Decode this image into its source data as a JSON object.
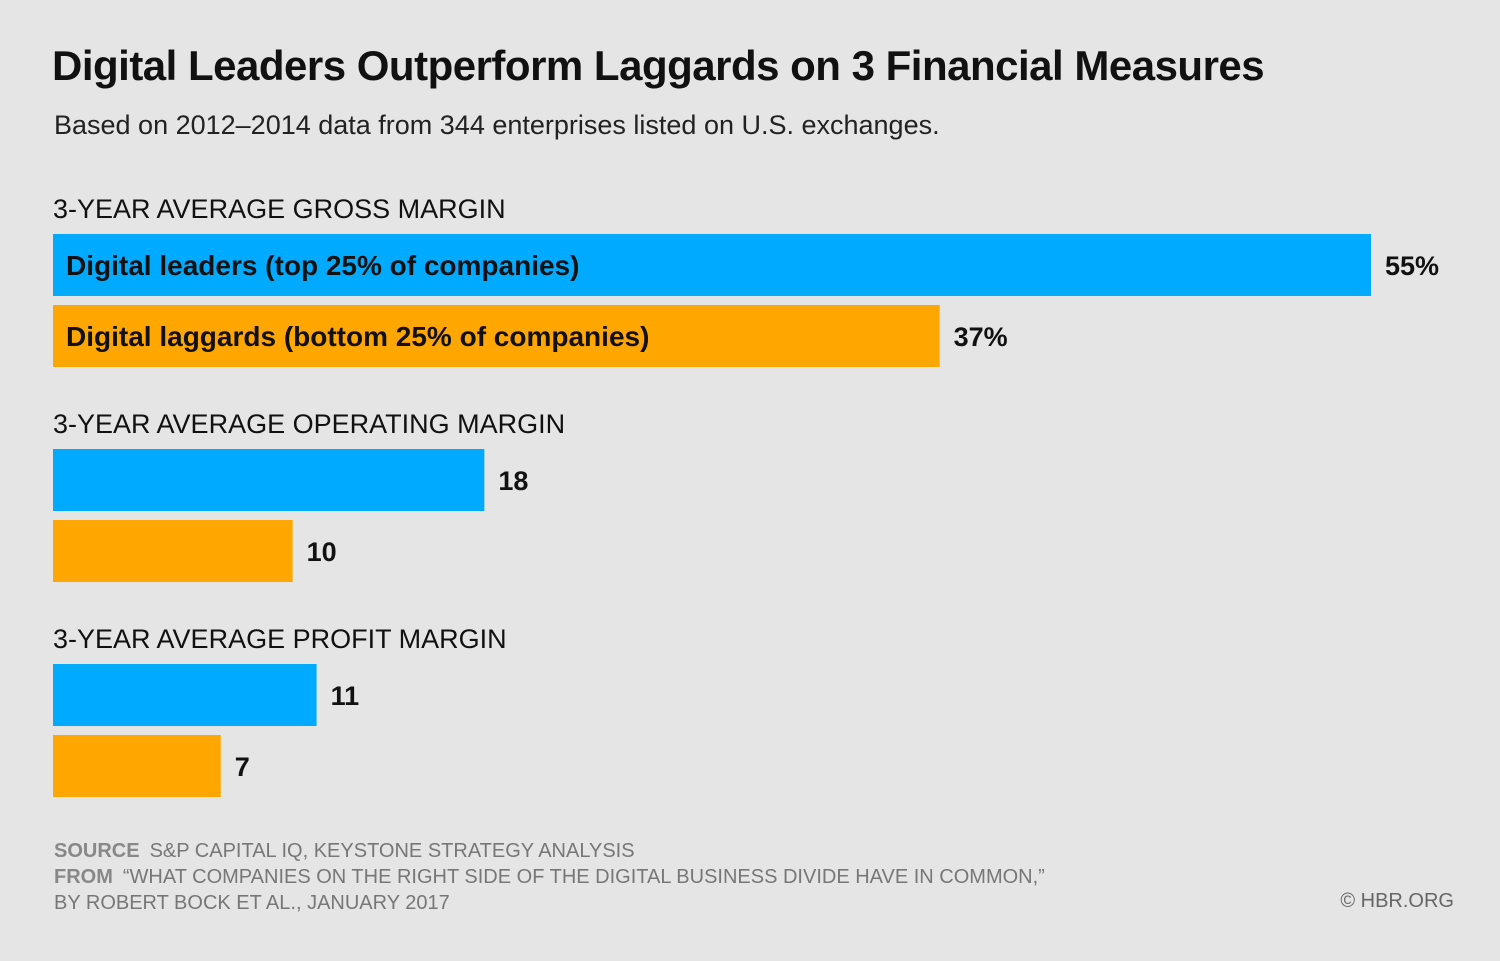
{
  "title": "Digital Leaders Outperform Laggards on 3 Financial Measures",
  "subtitle": "Based on 2012–2014 data from 344 enterprises listed on U.S. exchanges.",
  "colors": {
    "leaders": "#00aaff",
    "laggards": "#ffa600",
    "background": "#e5e5e5"
  },
  "chart_data": {
    "type": "bar",
    "orientation": "horizontal",
    "title": "Digital Leaders Outperform Laggards on 3 Financial Measures",
    "subtitle": "Based on 2012–2014 data from 344 enterprises listed on U.S. exchanges.",
    "categories": [
      "3-YEAR AVERAGE GROSS MARGIN",
      "3-YEAR AVERAGE OPERATING MARGIN",
      "3-YEAR AVERAGE PROFIT MARGIN"
    ],
    "series": [
      {
        "name": "Digital leaders (top 25% of companies)",
        "values": [
          55,
          18,
          11
        ],
        "labels": [
          "55%",
          "18",
          "11"
        ]
      },
      {
        "name": "Digital laggards (bottom 25% of companies)",
        "values": [
          37,
          10,
          7
        ],
        "labels": [
          "37%",
          "10",
          "7"
        ]
      }
    ],
    "unit": "%",
    "xlim": [
      0,
      55
    ],
    "grid": false,
    "legend": "inside first bars"
  },
  "footer": {
    "source_label": "SOURCE",
    "source_text": "S&P CAPITAL IQ, KEYSTONE STRATEGY ANALYSIS",
    "from_label": "FROM",
    "from_text": "“WHAT COMPANIES ON THE RIGHT SIDE OF THE DIGITAL BUSINESS DIVIDE HAVE IN COMMON,”",
    "from_text2": "BY ROBERT BOCK ET AL., JANUARY 2017",
    "credit": "© HBR.ORG"
  }
}
